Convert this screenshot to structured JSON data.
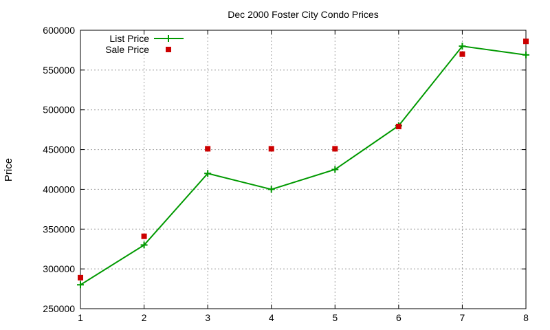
{
  "chart_data": {
    "type": "line",
    "title": "Dec 2000 Foster City Condo Prices",
    "xlabel": "",
    "ylabel": "Price",
    "xlim": [
      1,
      8
    ],
    "ylim": [
      250000,
      600000
    ],
    "x_ticks": [
      "1",
      "2",
      "3",
      "4",
      "5",
      "6",
      "7",
      "8"
    ],
    "y_ticks": [
      "250000",
      "300000",
      "350000",
      "400000",
      "450000",
      "500000",
      "550000",
      "600000"
    ],
    "grid": true,
    "legend_position": "top-left",
    "series": [
      {
        "name": "List Price",
        "style": "line+cross",
        "color": "#009900",
        "x": [
          1,
          2,
          3,
          4,
          5,
          6,
          7,
          8
        ],
        "y": [
          280000,
          330000,
          420000,
          400000,
          425000,
          480000,
          580000,
          569000
        ]
      },
      {
        "name": "Sale Price",
        "style": "square",
        "color": "#cc0000",
        "x": [
          1,
          2,
          3,
          4,
          5,
          6,
          7,
          8
        ],
        "y": [
          289000,
          341000,
          451000,
          451000,
          451000,
          479000,
          570000,
          586000
        ]
      }
    ]
  }
}
